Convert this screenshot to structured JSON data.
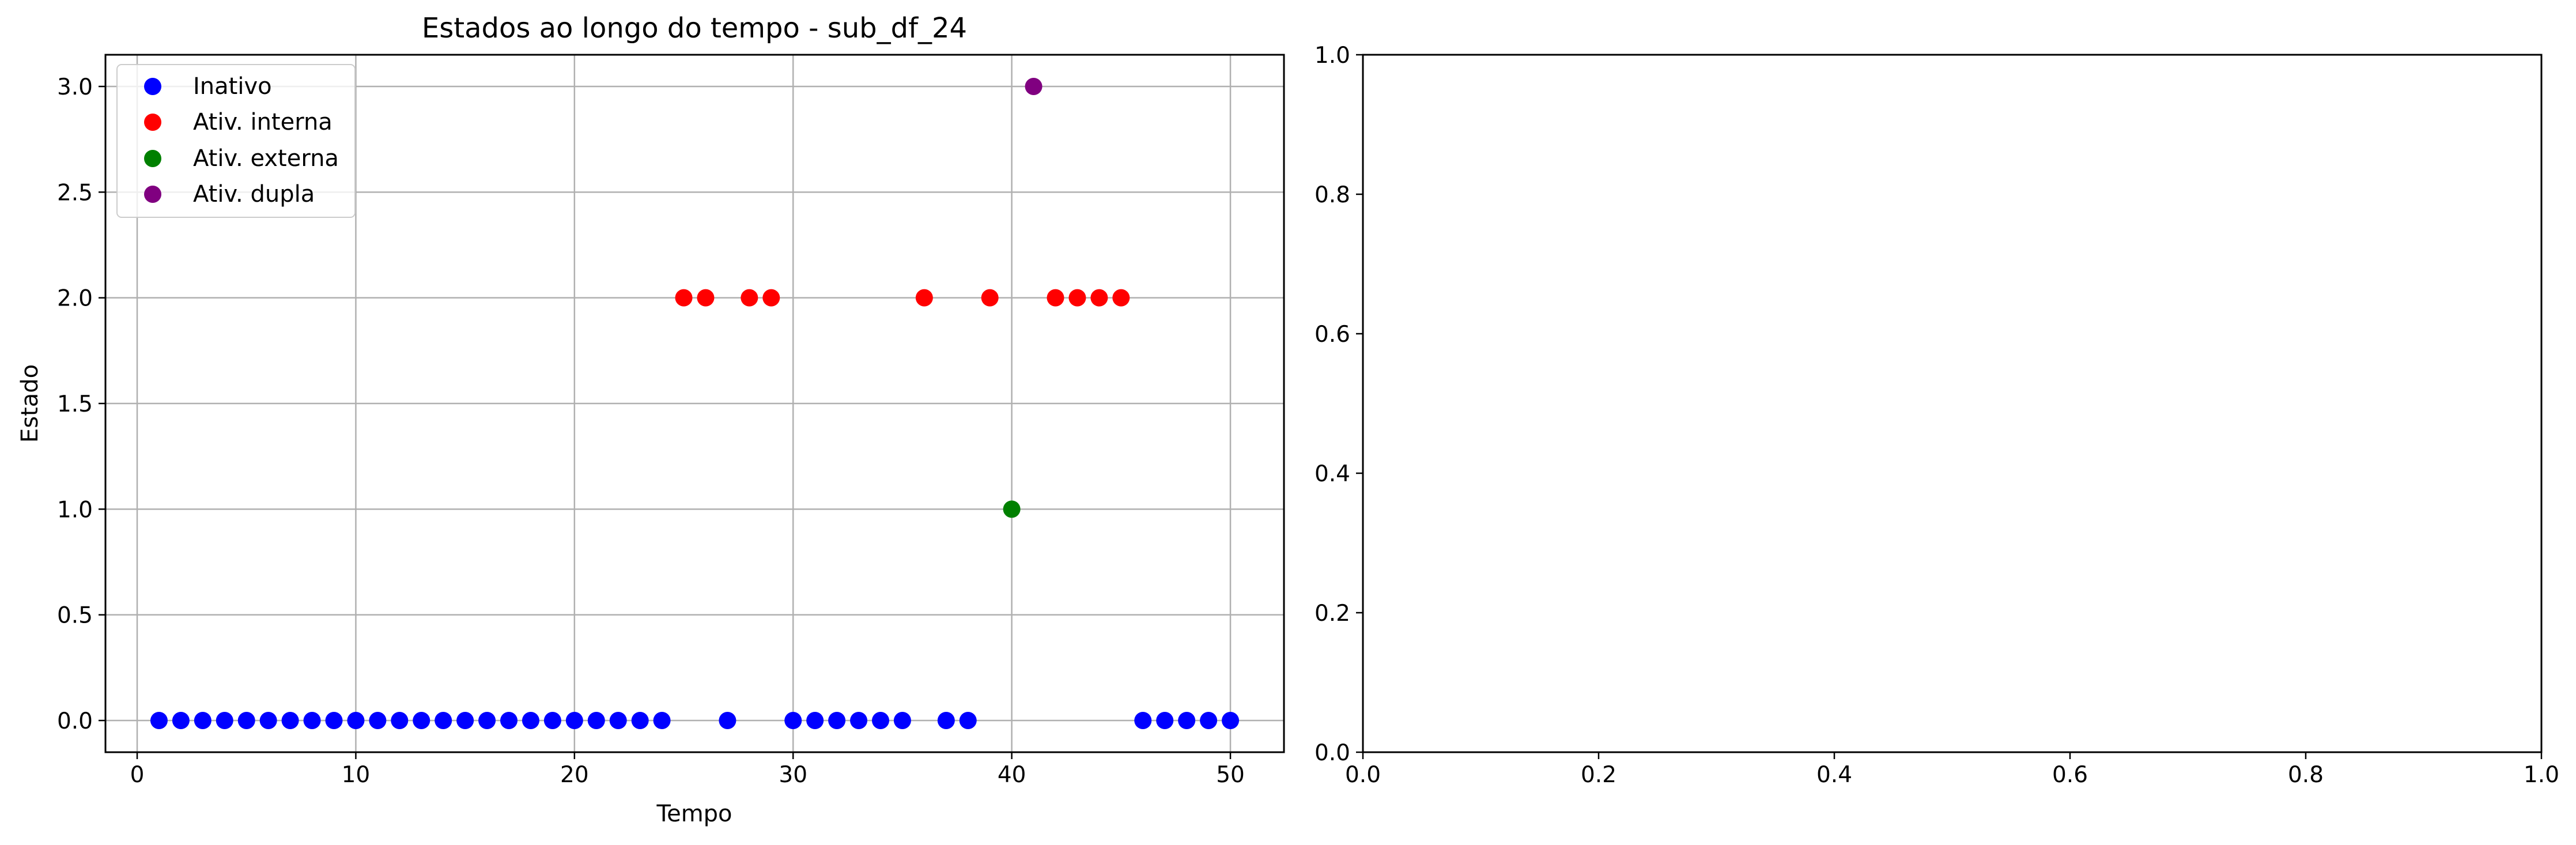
{
  "chart_data": [
    {
      "type": "scatter",
      "title": "Estados ao longo do tempo - sub_df_24",
      "xlabel": "Tempo",
      "ylabel": "Estado",
      "xlim": [
        -1.45,
        52.45
      ],
      "ylim": [
        -0.15,
        3.15
      ],
      "xticks": [
        "0",
        "10",
        "20",
        "30",
        "40",
        "50"
      ],
      "yticks": [
        "0.0",
        "0.5",
        "1.0",
        "1.5",
        "2.0",
        "2.5",
        "3.0"
      ],
      "grid": true,
      "legend_position": "upper-left",
      "series": [
        {
          "name": "Inativo",
          "color": "#0000ff",
          "x": [
            1,
            2,
            3,
            4,
            5,
            6,
            7,
            8,
            9,
            10,
            11,
            12,
            13,
            14,
            15,
            16,
            17,
            18,
            19,
            20,
            21,
            22,
            23,
            24,
            27,
            30,
            31,
            32,
            33,
            34,
            35,
            37,
            38,
            46,
            47,
            48,
            49,
            50
          ],
          "y": [
            0,
            0,
            0,
            0,
            0,
            0,
            0,
            0,
            0,
            0,
            0,
            0,
            0,
            0,
            0,
            0,
            0,
            0,
            0,
            0,
            0,
            0,
            0,
            0,
            0,
            0,
            0,
            0,
            0,
            0,
            0,
            0,
            0,
            0,
            0,
            0,
            0,
            0
          ]
        },
        {
          "name": "Ativ. interna",
          "color": "#ff0000",
          "x": [
            25,
            26,
            28,
            29,
            36,
            39,
            42,
            43,
            44,
            45
          ],
          "y": [
            2,
            2,
            2,
            2,
            2,
            2,
            2,
            2,
            2,
            2
          ]
        },
        {
          "name": "Ativ. externa",
          "color": "#008000",
          "x": [
            40
          ],
          "y": [
            1
          ]
        },
        {
          "name": "Ativ. dupla",
          "color": "#800080",
          "x": [
            41
          ],
          "y": [
            3
          ]
        }
      ]
    },
    {
      "type": "scatter",
      "title": "",
      "xlabel": "",
      "ylabel": "",
      "xlim": [
        0,
        1
      ],
      "ylim": [
        0,
        1
      ],
      "xticks": [
        "0.0",
        "0.2",
        "0.4",
        "0.6",
        "0.8",
        "1.0"
      ],
      "yticks": [
        "0.0",
        "0.2",
        "0.4",
        "0.6",
        "0.8",
        "1.0"
      ],
      "grid": false,
      "series": []
    }
  ]
}
